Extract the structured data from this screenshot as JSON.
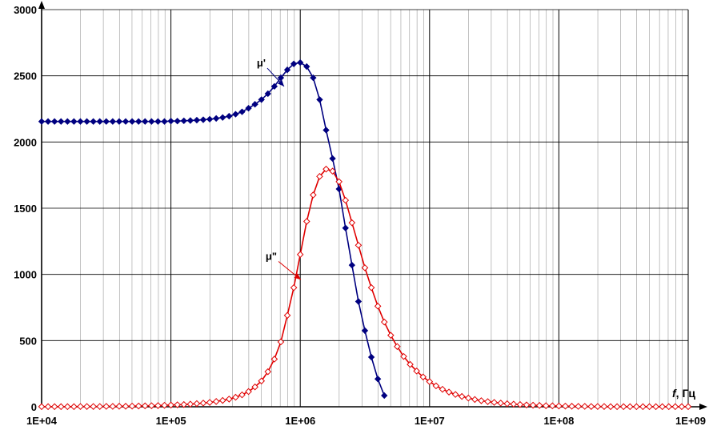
{
  "chart_data": {
    "type": "line",
    "title": "",
    "xlabel_var": "f",
    "xlabel_unit": ", Гц",
    "ylabel": "",
    "x_scale": "log",
    "xlim": [
      10000,
      1000000000
    ],
    "ylim": [
      0,
      3000
    ],
    "grid": true,
    "x_ticks": [
      {
        "value": 10000,
        "label": "1E+04"
      },
      {
        "value": 100000,
        "label": "1E+05"
      },
      {
        "value": 1000000,
        "label": "1E+06"
      },
      {
        "value": 10000000,
        "label": "1E+07"
      },
      {
        "value": 100000000,
        "label": "1E+08"
      },
      {
        "value": 1000000000,
        "label": "1E+09"
      }
    ],
    "y_ticks": [
      {
        "value": 0,
        "label": "0"
      },
      {
        "value": 500,
        "label": "500"
      },
      {
        "value": 1000,
        "label": "1000"
      },
      {
        "value": 1500,
        "label": "1500"
      },
      {
        "value": 2000,
        "label": "2000"
      },
      {
        "value": 2500,
        "label": "2500"
      },
      {
        "value": 3000,
        "label": "3000"
      }
    ],
    "series": [
      {
        "name": "μ'",
        "color": "#000080",
        "marker": "filled-diamond",
        "label_at": [
          540000,
          2570
        ],
        "arrow_to": [
          750000,
          2420
        ],
        "x": [
          10000,
          11220,
          12590,
          14130,
          15850,
          17780,
          19950,
          22390,
          25120,
          28180,
          31620,
          35480,
          39810,
          44670,
          50120,
          56230,
          63100,
          70790,
          79430,
          89130,
          100000,
          112200,
          125900,
          141300,
          158500,
          177800,
          199500,
          223900,
          251200,
          281800,
          316200,
          354800,
          398100,
          446700,
          501200,
          562300,
          631000,
          707900,
          794300,
          891300,
          1000000,
          1122000,
          1259000,
          1413000,
          1585000,
          1778000,
          1995000,
          2239000,
          2512000,
          2818000,
          3162000,
          3548000,
          3981000,
          4467000
        ],
        "y": [
          2155,
          2155,
          2155,
          2155,
          2155,
          2155,
          2155,
          2155,
          2155,
          2155,
          2155,
          2155,
          2155,
          2155,
          2155,
          2155,
          2155,
          2155,
          2155,
          2155,
          2158,
          2158,
          2160,
          2162,
          2165,
          2168,
          2172,
          2178,
          2185,
          2195,
          2210,
          2228,
          2255,
          2285,
          2320,
          2365,
          2420,
          2485,
          2545,
          2590,
          2600,
          2570,
          2485,
          2320,
          2090,
          1875,
          1645,
          1350,
          1070,
          795,
          575,
          375,
          210,
          85
        ]
      },
      {
        "name": "μ\"",
        "color": "#e00000",
        "marker": "open-diamond",
        "label_at": [
          660000,
          1110
        ],
        "arrow_to": [
          1010000,
          960
        ],
        "x": [
          10000,
          11220,
          12590,
          14130,
          15850,
          17780,
          19950,
          22390,
          25120,
          28180,
          31620,
          35480,
          39810,
          44670,
          50120,
          56230,
          63100,
          70790,
          79430,
          89130,
          100000,
          112200,
          125900,
          141300,
          158500,
          177800,
          199500,
          223900,
          251200,
          281800,
          316200,
          354800,
          398100,
          446700,
          501200,
          562300,
          631000,
          707900,
          794300,
          891300,
          1000000,
          1122000,
          1259000,
          1413000,
          1585000,
          1778000,
          1995000,
          2239000,
          2512000,
          2818000,
          3162000,
          3548000,
          3981000,
          4467000,
          5012000,
          5623000,
          6310000,
          7079000,
          7943000,
          8913000,
          10000000,
          11220000,
          12590000,
          14130000,
          15850000,
          17780000,
          19950000,
          22390000,
          25120000,
          28180000,
          31620000,
          35480000,
          39810000,
          44670000,
          50120000,
          56230000,
          63100000,
          70790000,
          79430000,
          89130000,
          100000000,
          112200000,
          125900000,
          141300000,
          158500000,
          177800000,
          199500000,
          223900000,
          251200000,
          281800000,
          316200000,
          354800000,
          398100000,
          446700000,
          501200000,
          562300000,
          631000000,
          707900000,
          794300000,
          891300000,
          1000000000
        ],
        "y": [
          1,
          1,
          1,
          1,
          1,
          1,
          2,
          2,
          2,
          2,
          3,
          3,
          4,
          4,
          5,
          6,
          7,
          8,
          9,
          11,
          13,
          15,
          17,
          20,
          24,
          28,
          33,
          40,
          48,
          58,
          72,
          90,
          115,
          150,
          195,
          265,
          360,
          490,
          690,
          900,
          1150,
          1400,
          1600,
          1740,
          1795,
          1780,
          1700,
          1560,
          1390,
          1220,
          1050,
          900,
          760,
          640,
          540,
          455,
          380,
          320,
          270,
          225,
          190,
          158,
          132,
          111,
          93,
          78,
          66,
          55,
          46,
          39,
          33,
          28,
          23,
          20,
          17,
          14,
          12,
          10,
          8,
          7,
          6,
          5,
          4,
          3,
          3,
          2,
          2,
          2,
          1,
          1,
          1,
          1,
          1,
          1,
          1,
          1,
          1,
          1,
          1,
          1,
          1
        ]
      }
    ]
  }
}
